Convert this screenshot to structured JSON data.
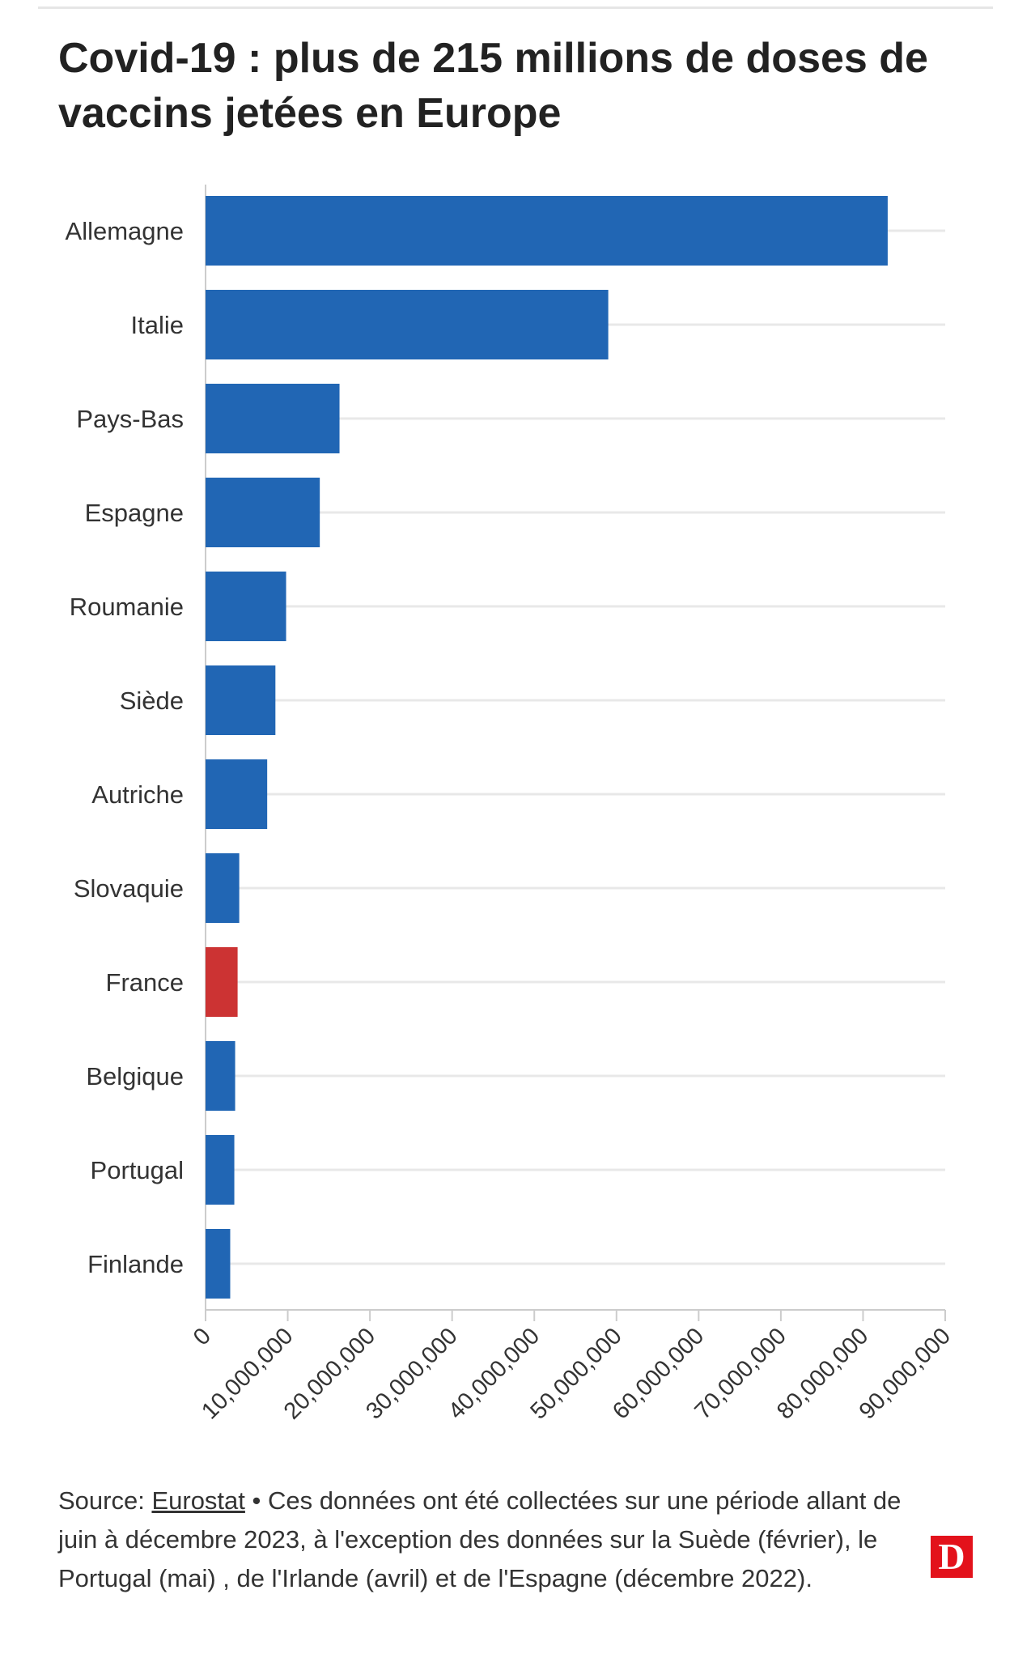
{
  "title": "Covid-19 : plus de 215 millions de doses de vaccins jetées en Europe",
  "colors": {
    "bar_default": "#2166b4",
    "bar_highlight": "#cc3333",
    "grid": "#e8e8e8",
    "axis": "#cccccc",
    "text": "#333333",
    "logo": "#e3121b"
  },
  "chart_data": {
    "type": "bar",
    "orientation": "horizontal",
    "categories": [
      "Allemagne",
      "Italie",
      "Pays-Bas",
      "Espagne",
      "Roumanie",
      "Siède",
      "Autriche",
      "Slovaquie",
      "France",
      "Belgique",
      "Portugal",
      "Finlande"
    ],
    "values": [
      83000000,
      49000000,
      16300000,
      13900000,
      9800000,
      8500000,
      7500000,
      4100000,
      3900000,
      3600000,
      3500000,
      3000000
    ],
    "highlight": "France",
    "xlim": [
      0,
      90000000
    ],
    "xticks": [
      "0",
      "10,000,000",
      "20,000,000",
      "30,000,000",
      "40,000,000",
      "50,000,000",
      "60,000,000",
      "70,000,000",
      "80,000,000",
      "90,000,000"
    ],
    "grid": true
  },
  "footer": {
    "source_prefix": "Source: ",
    "source_link": "Eurostat",
    "note": " • Ces données ont été collectées sur une période allant de juin à décembre 2023, à l'exception des données sur la Suède (février), le Portugal (mai) , de l'Irlande (avril) et de l'Espagne (décembre 2022)."
  },
  "logo": {
    "letter": "D"
  }
}
